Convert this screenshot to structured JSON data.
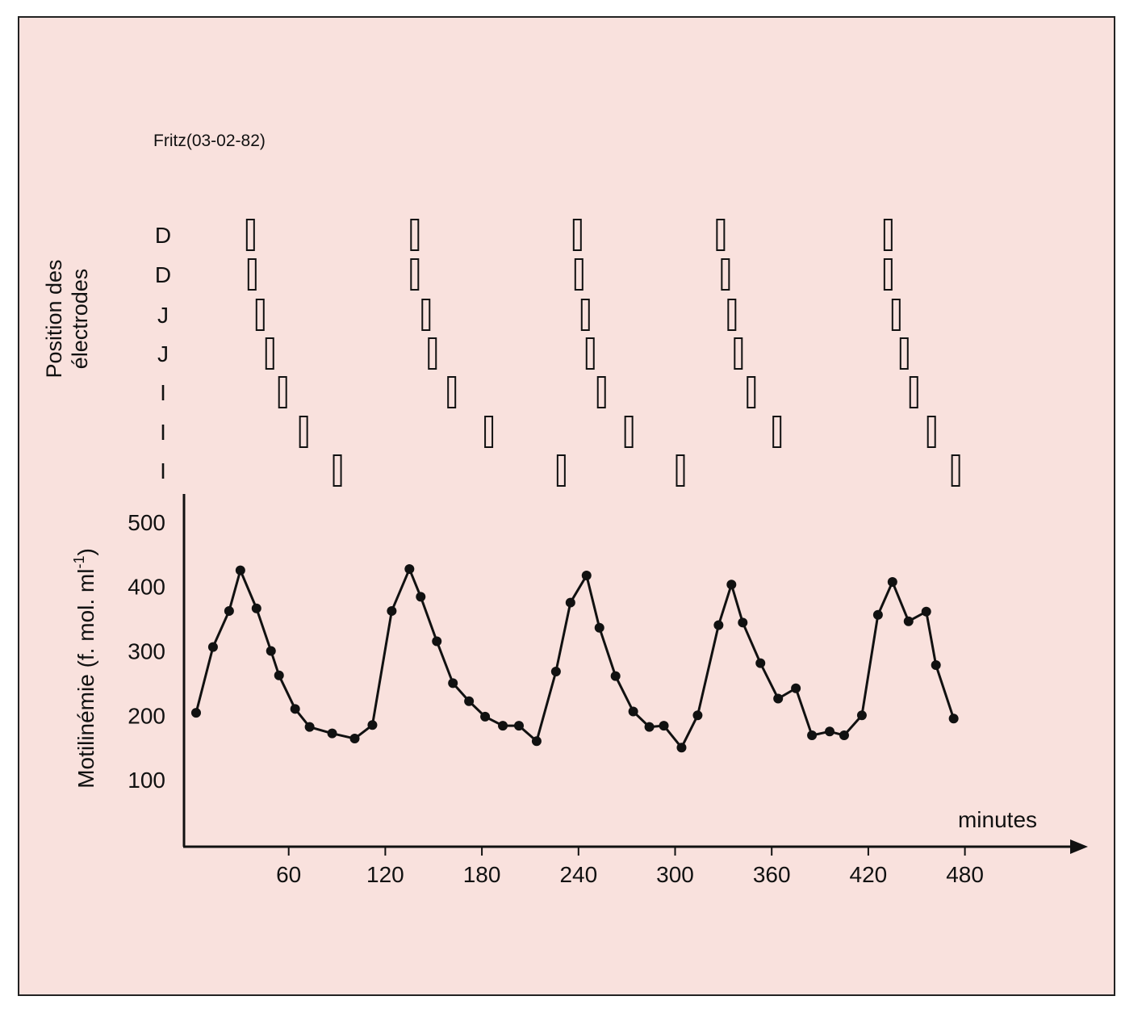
{
  "chart_data": {
    "type": "line",
    "title": "Fritz(03-02-82)",
    "xlabel": "minutes",
    "ylabel": "Motilinémie (f. mol. ml-1)",
    "ylabel_main": "Motilinémie (f. mol.  ml",
    "ylabel_sup": "-1",
    "ylabel_close": ")",
    "xlim": [
      0,
      520
    ],
    "ylim": [
      0,
      530
    ],
    "xticks": [
      60,
      120,
      180,
      240,
      300,
      360,
      420,
      480
    ],
    "yticks": [
      100,
      200,
      300,
      400,
      500
    ],
    "grid": false,
    "series": [
      {
        "name": "Motilinémie",
        "x": [
          2.5,
          13,
          23,
          30,
          40,
          49,
          54,
          64,
          73,
          87,
          101,
          112,
          124,
          135,
          142,
          152,
          162,
          172,
          182,
          193,
          203,
          214,
          226,
          235,
          245,
          253,
          263,
          274,
          284,
          293,
          304,
          314,
          327,
          335,
          342,
          353,
          364,
          375,
          385,
          396,
          405,
          416,
          426,
          435,
          445,
          456,
          462,
          473
        ],
        "y": [
          204,
          306,
          362,
          425,
          366,
          300,
          262,
          210,
          182,
          172,
          164,
          185,
          362,
          427,
          384,
          315,
          250,
          222,
          198,
          184,
          184,
          160,
          268,
          375,
          417,
          336,
          261,
          206,
          182,
          184,
          150,
          200,
          340,
          403,
          344,
          281,
          226,
          242,
          169,
          175,
          169,
          200,
          356,
          407,
          346,
          361,
          278,
          195
        ]
      }
    ],
    "electrodes": {
      "axis_label_line1": "Position des",
      "axis_label_line2": "électrodes",
      "rows": [
        {
          "label": "D",
          "times": [
            36,
            138,
            239,
            328,
            432
          ]
        },
        {
          "label": "D",
          "times": [
            37,
            138,
            240,
            331,
            432
          ]
        },
        {
          "label": "J",
          "times": [
            42,
            145,
            244,
            335,
            437
          ]
        },
        {
          "label": "J",
          "times": [
            48,
            149,
            247,
            339,
            442
          ]
        },
        {
          "label": "I",
          "times": [
            56,
            161,
            254,
            347,
            448
          ]
        },
        {
          "label": "I",
          "times": [
            69,
            184,
            271,
            363,
            459
          ]
        },
        {
          "label": "I",
          "times": [
            90,
            229,
            303,
            474
          ]
        }
      ]
    },
    "colors": {
      "background": "#f9e1dd",
      "ink": "#111111"
    }
  }
}
